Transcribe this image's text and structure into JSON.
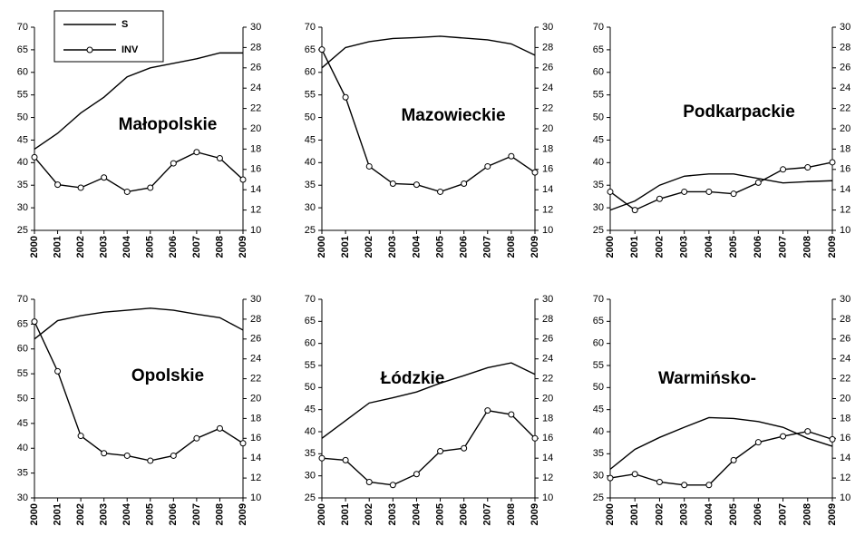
{
  "chart_data": [
    {
      "type": "line",
      "title": "Małopolskie",
      "legend": "upper left",
      "categories": [
        "2000",
        "2001",
        "2002",
        "2003",
        "2004",
        "2005",
        "2006",
        "2007",
        "2008",
        "2009"
      ],
      "ylim": [
        25,
        70
      ],
      "yticks": [
        25,
        30,
        35,
        40,
        45,
        50,
        55,
        60,
        65,
        70
      ],
      "y2lim": [
        10,
        30
      ],
      "y2ticks": [
        10,
        12,
        14,
        16,
        18,
        20,
        22,
        24,
        26,
        28,
        30
      ],
      "series": [
        {
          "name": "S",
          "color": "#000000",
          "values": [
            43,
            46.5,
            51,
            54.5,
            59,
            61,
            62,
            63,
            64.3,
            64.3
          ]
        },
        {
          "name": "INV",
          "color": "#000000",
          "axis": "y2",
          "marker": "circle",
          "values": [
            17.2,
            14.5,
            14.2,
            15.2,
            13.8,
            14.2,
            16.6,
            17.7,
            17.1,
            15.0
          ]
        }
      ]
    },
    {
      "type": "line",
      "title": "Mazowieckie",
      "categories": [
        "2000",
        "2001",
        "2002",
        "2003",
        "2004",
        "2005",
        "2006",
        "2007",
        "2008",
        "2009"
      ],
      "ylim": [
        25,
        70
      ],
      "yticks": [
        25,
        30,
        35,
        40,
        45,
        50,
        55,
        60,
        65,
        70
      ],
      "y2lim": [
        10,
        30
      ],
      "y2ticks": [
        10,
        12,
        14,
        16,
        18,
        20,
        22,
        24,
        26,
        28,
        30
      ],
      "series": [
        {
          "color": "#000000",
          "values": [
            61,
            65.5,
            66.8,
            67.5,
            67.7,
            68,
            67.6,
            67.2,
            66.3,
            63.8
          ]
        },
        {
          "color": "#000000",
          "axis": "y2",
          "marker": "circle",
          "values": [
            27.8,
            23.1,
            16.3,
            14.6,
            14.5,
            13.8,
            14.6,
            16.3,
            17.3,
            15.7
          ]
        }
      ]
    },
    {
      "type": "line",
      "title": "Podkarpackie",
      "categories": [
        "2000",
        "2001",
        "2002",
        "2003",
        "2004",
        "2005",
        "2006",
        "2007",
        "2008",
        "2009"
      ],
      "ylim": [
        25,
        70
      ],
      "yticks": [
        25,
        30,
        35,
        40,
        45,
        50,
        55,
        60,
        65,
        70
      ],
      "y2lim": [
        10,
        30
      ],
      "y2ticks": [
        10,
        12,
        14,
        16,
        18,
        20,
        22,
        24,
        26,
        28,
        30
      ],
      "series": [
        {
          "color": "#000000",
          "values": [
            29.5,
            31.5,
            35,
            37,
            37.5,
            37.5,
            36.5,
            35.5,
            35.8,
            36
          ]
        },
        {
          "color": "#000000",
          "axis": "y2",
          "marker": "circle",
          "values": [
            13.8,
            12.0,
            13.1,
            13.8,
            13.8,
            13.6,
            14.7,
            16.0,
            16.2,
            16.7
          ]
        }
      ]
    },
    {
      "type": "line",
      "title": "Opolskie",
      "categories": [
        "2000",
        "2001",
        "2002",
        "2003",
        "2004",
        "2005",
        "2006",
        "2007",
        "2008",
        "2009"
      ],
      "ylim": [
        30,
        70
      ],
      "yticks": [
        30,
        35,
        40,
        45,
        50,
        55,
        60,
        65,
        70
      ],
      "y2lim": [
        10,
        30
      ],
      "y2ticks": [
        10,
        12,
        14,
        16,
        18,
        20,
        22,
        24,
        26,
        28,
        30
      ],
      "series": [
        {
          "color": "#000000",
          "values": [
            62,
            65.7,
            66.7,
            67.4,
            67.8,
            68.2,
            67.8,
            67,
            66.3,
            63.8
          ]
        },
        {
          "color": "#000000",
          "axis": "y2",
          "marker": "circle",
          "values": [
            27.75,
            22.75,
            16.25,
            14.5,
            14.25,
            13.75,
            14.25,
            16,
            17,
            15.5
          ]
        }
      ]
    },
    {
      "type": "line",
      "title": "Łódzkie",
      "categories": [
        "2000",
        "2001",
        "2002",
        "2003",
        "2004",
        "2005",
        "2006",
        "2007",
        "2008",
        "2009"
      ],
      "ylim": [
        25,
        70
      ],
      "yticks": [
        25,
        30,
        35,
        40,
        45,
        50,
        55,
        60,
        65,
        70
      ],
      "y2lim": [
        10,
        30
      ],
      "y2ticks": [
        10,
        12,
        14,
        16,
        18,
        20,
        22,
        24,
        26,
        28,
        30
      ],
      "series": [
        {
          "color": "#000000",
          "values": [
            38.5,
            42.5,
            46.5,
            47.7,
            49,
            51,
            52.7,
            54.5,
            55.6,
            53
          ]
        },
        {
          "color": "#000000",
          "axis": "y2",
          "marker": "circle",
          "values": [
            14.0,
            13.8,
            11.6,
            11.3,
            12.4,
            14.7,
            15.0,
            18.8,
            18.4,
            16.0
          ]
        }
      ]
    },
    {
      "type": "line",
      "title": "Warmińsko-",
      "categories": [
        "2000",
        "2001",
        "2002",
        "2003",
        "2004",
        "2005",
        "2006",
        "2007",
        "2008",
        "2009"
      ],
      "ylim": [
        25,
        70
      ],
      "yticks": [
        25,
        30,
        35,
        40,
        45,
        50,
        55,
        60,
        65,
        70
      ],
      "y2lim": [
        10,
        30
      ],
      "y2ticks": [
        10,
        12,
        14,
        16,
        18,
        20,
        22,
        24,
        26,
        28,
        30
      ],
      "series": [
        {
          "color": "#000000",
          "values": [
            31.5,
            36,
            38.7,
            41,
            43.2,
            43,
            42.3,
            41,
            38.5,
            36.7
          ]
        },
        {
          "color": "#000000",
          "axis": "y2",
          "marker": "circle",
          "values": [
            12.0,
            12.4,
            11.6,
            11.3,
            11.3,
            13.8,
            15.6,
            16.2,
            16.7,
            15.9
          ]
        }
      ]
    }
  ]
}
